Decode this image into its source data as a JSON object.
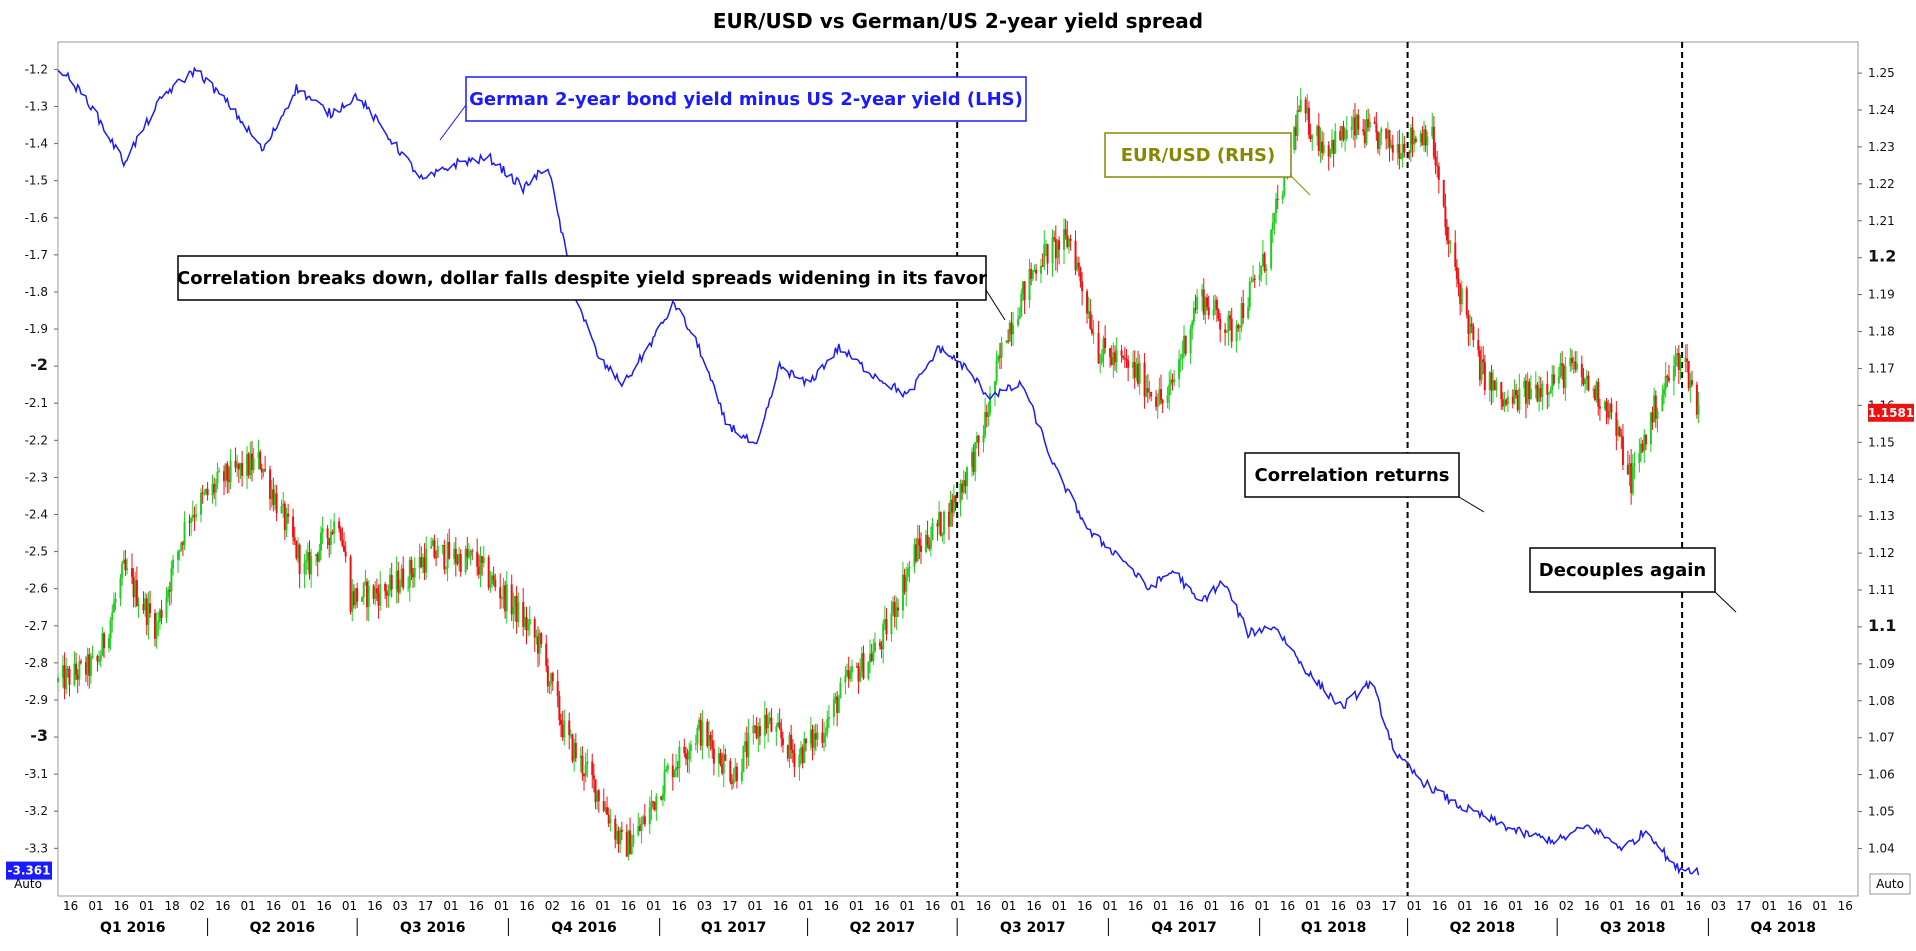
{
  "chart_data": {
    "type": "line",
    "title": "EUR/USD vs German/US 2-year yield spread",
    "series": [
      {
        "name": "German 2-year bond yield minus US 2-year yield (LHS)",
        "axis": "left",
        "style": "line",
        "color": "#1a1aff",
        "x": [
          "2016-01-01",
          "2016-01-20",
          "2016-02-10",
          "2016-03-05",
          "2016-03-25",
          "2016-04-15",
          "2016-05-05",
          "2016-05-25",
          "2016-06-15",
          "2016-07-01",
          "2016-07-20",
          "2016-08-10",
          "2016-09-01",
          "2016-09-20",
          "2016-10-10",
          "2016-10-25",
          "2016-11-10",
          "2016-11-25",
          "2016-12-10",
          "2016-12-25",
          "2017-01-10",
          "2017-01-25",
          "2017-02-10",
          "2017-03-01",
          "2017-03-15",
          "2017-04-01",
          "2017-04-20",
          "2017-05-10",
          "2017-06-01",
          "2017-06-20",
          "2017-07-05",
          "2017-07-20",
          "2017-08-10",
          "2017-08-30",
          "2017-09-20",
          "2017-10-10",
          "2017-10-25",
          "2017-11-10",
          "2017-11-25",
          "2017-12-10",
          "2017-12-25",
          "2018-01-10",
          "2018-01-31",
          "2018-02-20",
          "2018-03-10",
          "2018-03-25",
          "2018-04-10",
          "2018-04-30",
          "2018-05-20",
          "2018-06-10",
          "2018-07-01",
          "2018-07-20",
          "2018-08-10",
          "2018-08-25",
          "2018-09-10",
          "2018-09-25"
        ],
        "values": [
          -1.19,
          -1.29,
          -1.45,
          -1.27,
          -1.2,
          -1.3,
          -1.42,
          -1.25,
          -1.32,
          -1.27,
          -1.38,
          -1.5,
          -1.45,
          -1.44,
          -1.52,
          -1.46,
          -1.8,
          -1.98,
          -2.05,
          -1.95,
          -1.83,
          -1.95,
          -2.15,
          -2.22,
          -2.0,
          -2.05,
          -1.95,
          -2.02,
          -2.08,
          -1.95,
          -2.0,
          -2.08,
          -2.05,
          -2.28,
          -2.45,
          -2.52,
          -2.6,
          -2.55,
          -2.64,
          -2.58,
          -2.72,
          -2.7,
          -2.83,
          -2.92,
          -2.85,
          -3.05,
          -3.12,
          -3.18,
          -3.22,
          -3.26,
          -3.28,
          -3.24,
          -3.3,
          -3.25,
          -3.35,
          -3.36
        ]
      },
      {
        "name": "EUR/USD (RHS)",
        "axis": "right",
        "style": "candlestick",
        "up_color": "#22cc22",
        "down_color": "#ee1111",
        "x": [
          "2016-01-01",
          "2016-01-25",
          "2016-02-10",
          "2016-03-01",
          "2016-03-20",
          "2016-04-10",
          "2016-05-03",
          "2016-05-30",
          "2016-06-20",
          "2016-06-27",
          "2016-07-20",
          "2016-08-15",
          "2016-09-10",
          "2016-10-05",
          "2016-10-20",
          "2016-11-05",
          "2016-11-25",
          "2016-12-10",
          "2016-12-20",
          "2017-01-05",
          "2017-01-25",
          "2017-02-15",
          "2017-03-05",
          "2017-03-25",
          "2017-04-10",
          "2017-04-25",
          "2017-05-15",
          "2017-06-05",
          "2017-06-25",
          "2017-07-15",
          "2017-07-31",
          "2017-08-20",
          "2017-09-08",
          "2017-09-25",
          "2017-10-15",
          "2017-11-05",
          "2017-11-25",
          "2017-12-15",
          "2018-01-05",
          "2018-01-25",
          "2018-02-10",
          "2018-03-01",
          "2018-03-25",
          "2018-04-15",
          "2018-04-25",
          "2018-05-15",
          "2018-05-30",
          "2018-06-20",
          "2018-07-10",
          "2018-08-01",
          "2018-08-15",
          "2018-08-30",
          "2018-09-15",
          "2018-09-25"
        ],
        "values": [
          1.085,
          1.09,
          1.115,
          1.1,
          1.13,
          1.14,
          1.145,
          1.115,
          1.13,
          1.108,
          1.11,
          1.12,
          1.118,
          1.105,
          1.095,
          1.07,
          1.055,
          1.04,
          1.045,
          1.06,
          1.072,
          1.06,
          1.075,
          1.065,
          1.072,
          1.085,
          1.095,
          1.12,
          1.13,
          1.15,
          1.18,
          1.2,
          1.205,
          1.175,
          1.17,
          1.16,
          1.19,
          1.18,
          1.2,
          1.24,
          1.23,
          1.235,
          1.23,
          1.235,
          1.205,
          1.17,
          1.16,
          1.165,
          1.17,
          1.16,
          1.14,
          1.16,
          1.175,
          1.158
        ]
      }
    ],
    "left_axis": {
      "ylim": [
        -3.38,
        -1.18
      ],
      "ticks": [
        "-1.2",
        "-1.3",
        "-1.4",
        "-1.5",
        "-1.6",
        "-1.7",
        "-1.8",
        "-1.9",
        "-2",
        "-2.1",
        "-2.2",
        "-2.3",
        "-2.4",
        "-2.5",
        "-2.6",
        "-2.7",
        "-2.8",
        "-2.9",
        "-3",
        "-3.1",
        "-3.2",
        "-3.3"
      ]
    },
    "right_axis": {
      "ylim": [
        1.032,
        1.253
      ],
      "ticks": [
        "1.25",
        "1.24",
        "1.23",
        "1.22",
        "1.21",
        "1.2",
        "1.19",
        "1.18",
        "1.17",
        "1.16",
        "1.15",
        "1.14",
        "1.13",
        "1.12",
        "1.11",
        "1.1",
        "1.09",
        "1.08",
        "1.07",
        "1.06",
        "1.05",
        "1.04"
      ],
      "current_value_label": "1.1581",
      "auto_label": "Auto"
    },
    "left_value_label": "-3.361",
    "left_auto_label": "Auto",
    "x_axis": {
      "start": "2016-01-01",
      "end": "2018-12-31",
      "day_ticks": [
        "16",
        "01",
        "16",
        "01",
        "18",
        "02",
        "16",
        "01",
        "16",
        "01",
        "16",
        "01",
        "16",
        "03",
        "17",
        "01",
        "16",
        "01",
        "16",
        "02",
        "16",
        "01",
        "16",
        "01",
        "16",
        "03",
        "17",
        "01",
        "16",
        "01",
        "16",
        "01",
        "16",
        "01",
        "16",
        "01",
        "16",
        "01",
        "16",
        "01",
        "16",
        "01",
        "16",
        "01",
        "16",
        "01",
        "16",
        "01",
        "16",
        "01",
        "16",
        "03",
        "17",
        "01",
        "16",
        "01",
        "16",
        "01",
        "16",
        "02",
        "16",
        "01",
        "16",
        "01",
        "16",
        "03",
        "17",
        "01",
        "16",
        "01",
        "16"
      ],
      "quarters": [
        {
          "label": "Q1 2016",
          "start": "2016-01-01"
        },
        {
          "label": "Q2 2016",
          "start": "2016-04-01"
        },
        {
          "label": "Q3 2016",
          "start": "2016-07-01"
        },
        {
          "label": "Q4 2016",
          "start": "2016-10-01"
        },
        {
          "label": "Q1 2017",
          "start": "2017-01-01"
        },
        {
          "label": "Q2 2017",
          "start": "2017-04-01"
        },
        {
          "label": "Q3 2017",
          "start": "2017-07-01"
        },
        {
          "label": "Q4 2017",
          "start": "2017-10-01"
        },
        {
          "label": "Q1 2018",
          "start": "2018-01-01"
        },
        {
          "label": "Q2 2018",
          "start": "2018-04-01"
        },
        {
          "label": "Q3 2018",
          "start": "2018-07-01"
        },
        {
          "label": "Q4 2018",
          "start": "2018-10-01"
        }
      ]
    },
    "vertical_lines": [
      "2017-07-01",
      "2018-04-01",
      "2018-09-15"
    ],
    "annotations": [
      {
        "text": "German 2-year bond yield minus US 2-year yield (LHS)",
        "color": "#1a1aff",
        "border": "#1a1aff"
      },
      {
        "text": "EUR/USD (RHS)",
        "color": "#888800",
        "border": "#888800"
      },
      {
        "text": "Correlation breaks down, dollar falls despite yield spreads widening in its favor",
        "color": "#000000",
        "border": "#000000"
      },
      {
        "text": "Correlation returns",
        "color": "#000000",
        "border": "#000000"
      },
      {
        "text": "Decouples again",
        "color": "#000000",
        "border": "#000000"
      }
    ],
    "grid": false
  }
}
